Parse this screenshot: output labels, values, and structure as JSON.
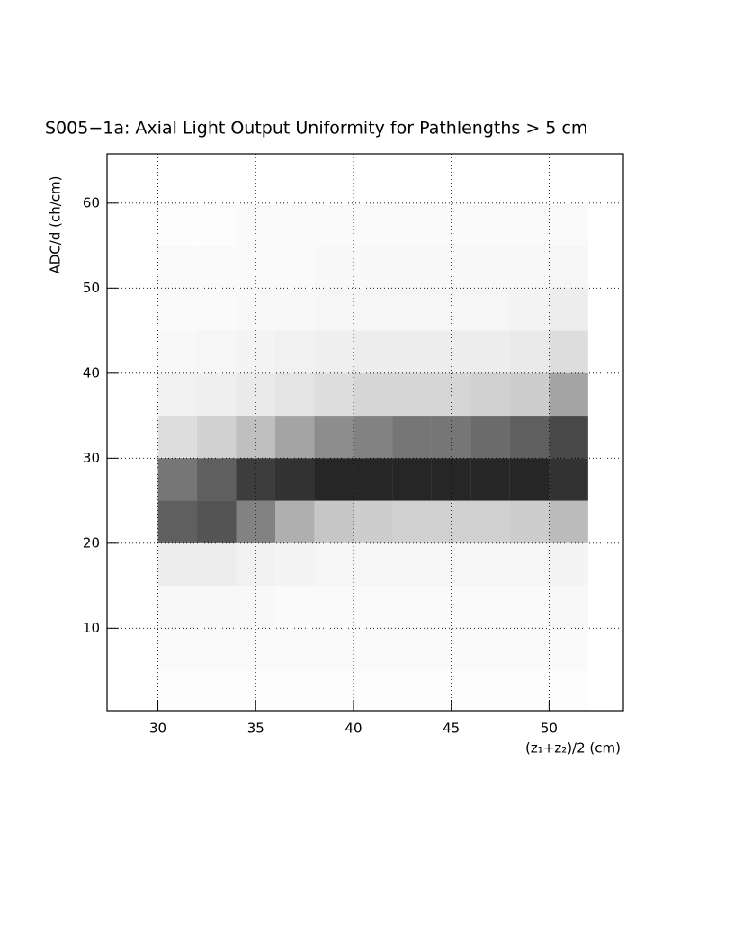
{
  "chart_data": {
    "type": "hist2d",
    "title": "S005−1a: Axial Light Output Uniformity for Pathlengths > 5 cm",
    "xlabel": "(z₁+z₂)/2 (cm)",
    "ylabel": "ADC/d (ch/cm)",
    "xlim": [
      27.4,
      53.8
    ],
    "ylim": [
      0.3,
      65.8
    ],
    "xticks": [
      30,
      35,
      40,
      45,
      50
    ],
    "yticks": [
      10,
      20,
      30,
      40,
      50,
      60
    ],
    "grid": true,
    "color": "#000000",
    "xbins": [
      30,
      32,
      34,
      36,
      38,
      40,
      42,
      44,
      46,
      48,
      50,
      52
    ],
    "ybins": [
      0,
      5,
      10,
      15,
      20,
      25,
      30,
      35,
      40,
      45,
      50,
      55,
      60,
      65
    ],
    "counts": [
      [
        1,
        2,
        3,
        8,
        70,
        60,
        15,
        6,
        3,
        2,
        2,
        1,
        0
      ],
      [
        1,
        2,
        3,
        8,
        75,
        70,
        20,
        7,
        4,
        2,
        2,
        1,
        0
      ],
      [
        1,
        2,
        3,
        6,
        55,
        85,
        28,
        9,
        5,
        3,
        2,
        2,
        0
      ],
      [
        1,
        2,
        2,
        5,
        35,
        90,
        40,
        12,
        6,
        3,
        2,
        2,
        0
      ],
      [
        1,
        2,
        2,
        4,
        25,
        95,
        50,
        15,
        7,
        4,
        3,
        2,
        0
      ],
      [
        1,
        2,
        2,
        4,
        22,
        95,
        55,
        18,
        8,
        4,
        3,
        2,
        0
      ],
      [
        1,
        2,
        2,
        4,
        20,
        95,
        60,
        18,
        8,
        4,
        3,
        2,
        0
      ],
      [
        1,
        2,
        2,
        4,
        20,
        95,
        60,
        18,
        8,
        4,
        3,
        2,
        0
      ],
      [
        1,
        2,
        2,
        4,
        20,
        95,
        65,
        20,
        8,
        4,
        3,
        2,
        0
      ],
      [
        1,
        2,
        2,
        4,
        22,
        95,
        70,
        22,
        9,
        5,
        3,
        2,
        0
      ],
      [
        1,
        2,
        3,
        5,
        30,
        90,
        80,
        40,
        15,
        8,
        4,
        2,
        0
      ]
    ]
  }
}
